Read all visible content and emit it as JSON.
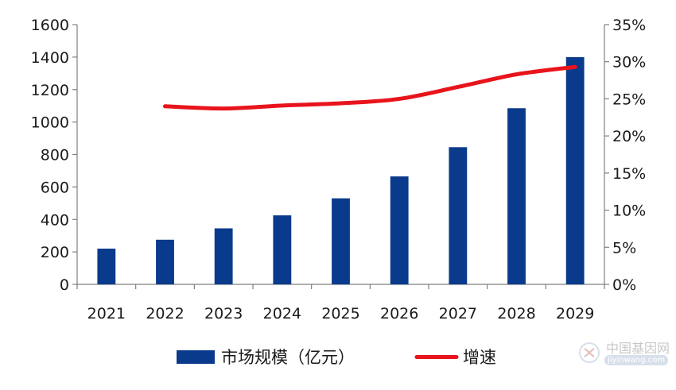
{
  "chart_data": {
    "type": "bar",
    "categories": [
      "2021",
      "2022",
      "2023",
      "2024",
      "2025",
      "2026",
      "2027",
      "2028",
      "2029"
    ],
    "series": [
      {
        "name": "市场规模（亿元）",
        "type": "bar",
        "axis": "left",
        "color": "#0a3a8c",
        "values": [
          220,
          275,
          345,
          425,
          530,
          665,
          845,
          1085,
          1400
        ]
      },
      {
        "name": "增速",
        "type": "line",
        "axis": "right",
        "color": "#e8141c",
        "values": [
          null,
          24.0,
          23.7,
          24.1,
          24.4,
          25.0,
          26.6,
          28.3,
          29.3
        ]
      }
    ],
    "y_left": {
      "lim": [
        0,
        1600
      ],
      "ticks": [
        0,
        200,
        400,
        600,
        800,
        1000,
        1200,
        1400,
        1600
      ],
      "tick_labels": [
        "0",
        "200",
        "400",
        "600",
        "800",
        "1000",
        "1200",
        "1400",
        "1600"
      ]
    },
    "y_right": {
      "lim": [
        0,
        35
      ],
      "ticks": [
        0,
        5,
        10,
        15,
        20,
        25,
        30,
        35
      ],
      "tick_labels": [
        "0%",
        "5%",
        "10%",
        "15%",
        "20%",
        "25%",
        "30%",
        "35%"
      ]
    },
    "grid": false,
    "legend_position": "bottom",
    "legend": [
      {
        "label": "市场规模（亿元）",
        "marker": "bar",
        "color": "#0a3a8c"
      },
      {
        "label": "增速",
        "marker": "line",
        "color": "#e8141c"
      }
    ]
  },
  "watermark": {
    "text": "中国基因网",
    "url": "jiyinwang.com"
  }
}
